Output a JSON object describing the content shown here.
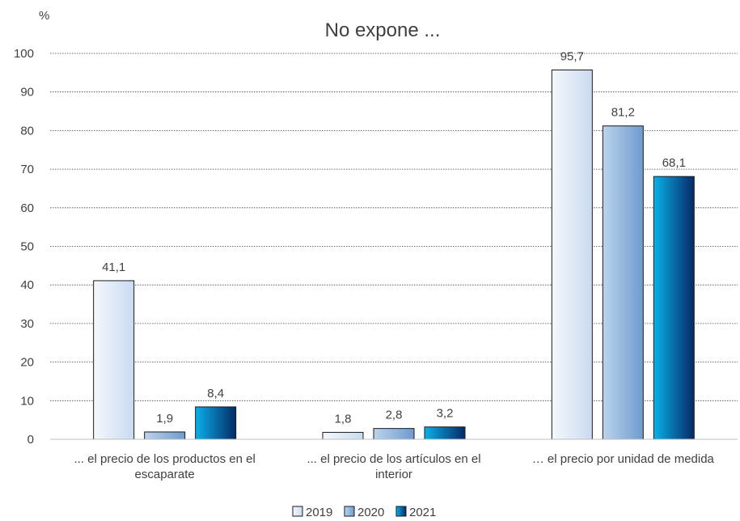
{
  "chart_data": {
    "type": "bar",
    "title": "No expone ...",
    "ylabel": "%",
    "xlabel": "",
    "ylim": [
      0,
      100
    ],
    "yticks": [
      0,
      10,
      20,
      30,
      40,
      50,
      60,
      70,
      80,
      90,
      100
    ],
    "grid": true,
    "legend_position": "bottom",
    "categories": [
      [
        "... el precio de los productos en el",
        "escaparate"
      ],
      [
        "... el precio de los artículos en el",
        "interior"
      ],
      [
        "… el precio por unidad de medida"
      ]
    ],
    "series": [
      {
        "name": "2019",
        "values": [
          41.1,
          1.8,
          95.7
        ],
        "labels": [
          "41,1",
          "1,8",
          "95,7"
        ],
        "color": "#dce9f7"
      },
      {
        "name": "2020",
        "values": [
          1.9,
          2.8,
          81.2
        ],
        "labels": [
          "1,9",
          "2,8",
          "81,2"
        ],
        "color": "#8fb4dc"
      },
      {
        "name": "2021",
        "values": [
          8.4,
          3.2,
          68.1
        ],
        "labels": [
          "8,4",
          "3,2",
          "68,1"
        ],
        "color": "#0a4d8c"
      }
    ]
  }
}
